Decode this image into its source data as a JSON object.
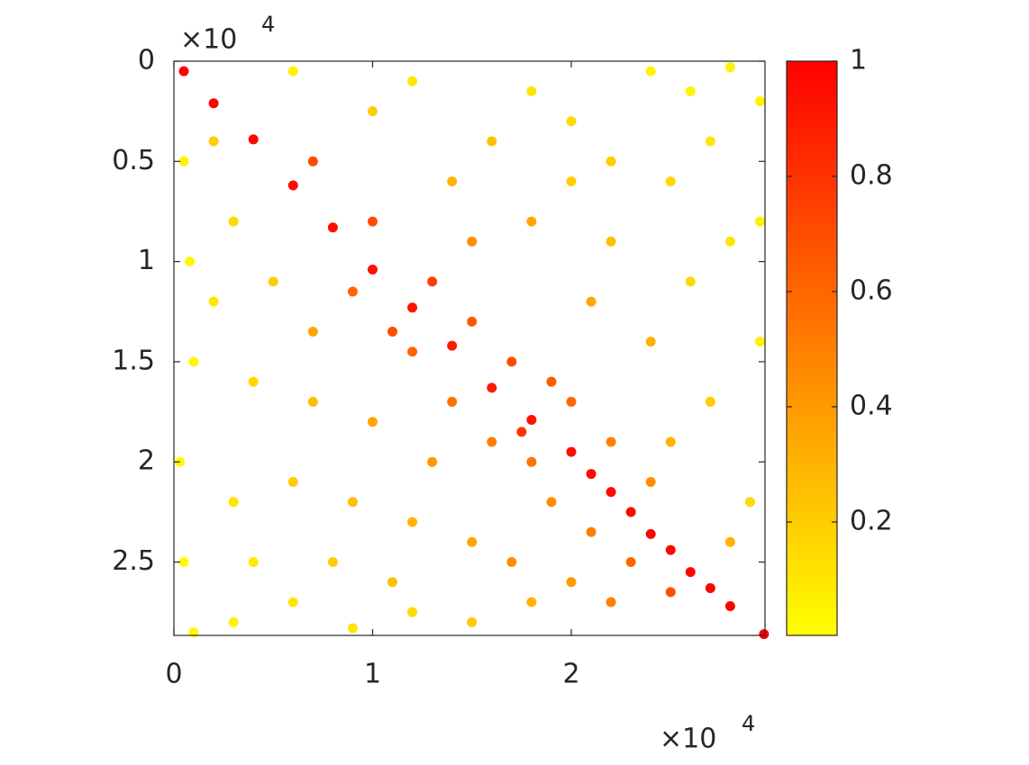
{
  "chart_data": {
    "type": "scatter",
    "x": [
      500,
      2000,
      4000,
      6000,
      8000,
      10000,
      12000,
      14000,
      16000,
      18000,
      20000,
      22000,
      24000,
      26000,
      28000,
      29700,
      27000,
      25000,
      23000,
      21000,
      10000,
      12000,
      15000,
      17000,
      18000,
      20000,
      22000,
      14000,
      16000,
      19000,
      21000,
      23000,
      9000,
      7000,
      13000,
      24000,
      25000,
      19000,
      11000,
      17500,
      6000,
      12000,
      18000,
      24000,
      28000,
      29500,
      27000,
      25000,
      22000,
      20000,
      16000,
      14000,
      18000,
      22000,
      26000,
      28000,
      29500,
      24000,
      27000,
      25000,
      29000,
      28000,
      21000,
      20000,
      10000,
      15000,
      26000,
      29500,
      500,
      800,
      1000,
      300,
      500,
      1000,
      3000,
      6000,
      9000,
      12000,
      15000,
      18000,
      20000,
      3000,
      6000,
      9000,
      12000,
      15000,
      4000,
      7000,
      10000,
      13000,
      2000,
      5000,
      7000,
      3000,
      2000,
      4000,
      17000,
      8000,
      22000,
      11000
    ],
    "values": [
      500,
      2100,
      3900,
      6200,
      8300,
      10400,
      12300,
      14200,
      16300,
      17900,
      19500,
      21500,
      23600,
      25500,
      27200,
      28600,
      26300,
      24400,
      22500,
      20600,
      8000,
      14500,
      13000,
      15000,
      20000,
      17000,
      19000,
      17000,
      19000,
      22000,
      23500,
      25000,
      11500,
      5000,
      11000,
      21000,
      26500,
      16000,
      13500,
      18500,
      500,
      1000,
      1500,
      500,
      300,
      2000,
      4000,
      6000,
      5000,
      3000,
      4000,
      6000,
      8000,
      9000,
      11000,
      9000,
      14000,
      14000,
      17000,
      19000,
      22000,
      24000,
      12000,
      6000,
      2500,
      9000,
      1500,
      8000,
      5000,
      10000,
      15000,
      20000,
      25000,
      28500,
      28000,
      27000,
      28300,
      27500,
      28000,
      27000,
      26000,
      22000,
      21000,
      22000,
      23000,
      24000,
      16000,
      17000,
      18000,
      20000,
      12000,
      11000,
      13500,
      8000,
      4000,
      25000,
      25000,
      25000,
      27000,
      26000
    ],
    "color_values": [
      1,
      0.98,
      0.97,
      0.96,
      0.95,
      0.93,
      0.92,
      0.9,
      0.9,
      0.93,
      0.95,
      0.97,
      0.98,
      0.99,
      1,
      1,
      0.99,
      0.98,
      0.97,
      0.96,
      0.7,
      0.6,
      0.65,
      0.7,
      0.55,
      0.6,
      0.5,
      0.55,
      0.5,
      0.45,
      0.5,
      0.6,
      0.6,
      0.7,
      0.75,
      0.45,
      0.7,
      0.65,
      0.7,
      0.8,
      0.05,
      0.1,
      0.1,
      0.05,
      0.05,
      0.05,
      0.1,
      0.15,
      0.2,
      0.15,
      0.25,
      0.3,
      0.35,
      0.25,
      0.15,
      0.1,
      0.05,
      0.3,
      0.2,
      0.3,
      0.15,
      0.3,
      0.35,
      0.2,
      0.2,
      0.45,
      0.05,
      0.05,
      0.05,
      0.03,
      0.03,
      0.02,
      0.02,
      0.02,
      0.05,
      0.1,
      0.1,
      0.15,
      0.2,
      0.3,
      0.4,
      0.1,
      0.2,
      0.25,
      0.3,
      0.35,
      0.15,
      0.25,
      0.35,
      0.4,
      0.1,
      0.2,
      0.35,
      0.15,
      0.2,
      0.08,
      0.45,
      0.2,
      0.5,
      0.25
    ],
    "xlim": [
      0,
      29750
    ],
    "ylim": [
      0,
      28660
    ],
    "y_reversed": true,
    "xticks": [
      0,
      {
        "value": 10000,
        "label": "1"
      },
      {
        "value": 20000,
        "label": "2"
      }
    ],
    "yticks": [
      0,
      {
        "value": 5000,
        "label": "0.5"
      },
      {
        "value": 10000,
        "label": "1"
      },
      {
        "value": 15000,
        "label": "1.5"
      },
      {
        "value": 20000,
        "label": "2"
      },
      {
        "value": 25000,
        "label": "2.5"
      }
    ],
    "x_multiplier": "×10",
    "x_exponent": "4",
    "y_multiplier": "×10",
    "y_exponent": "4",
    "colorbar": {
      "lim": [
        0.003,
        1
      ],
      "ticks": [
        0.2,
        0.4,
        0.6,
        0.8,
        1
      ],
      "colormap": [
        "#ffff00",
        "#ff0000"
      ]
    }
  }
}
